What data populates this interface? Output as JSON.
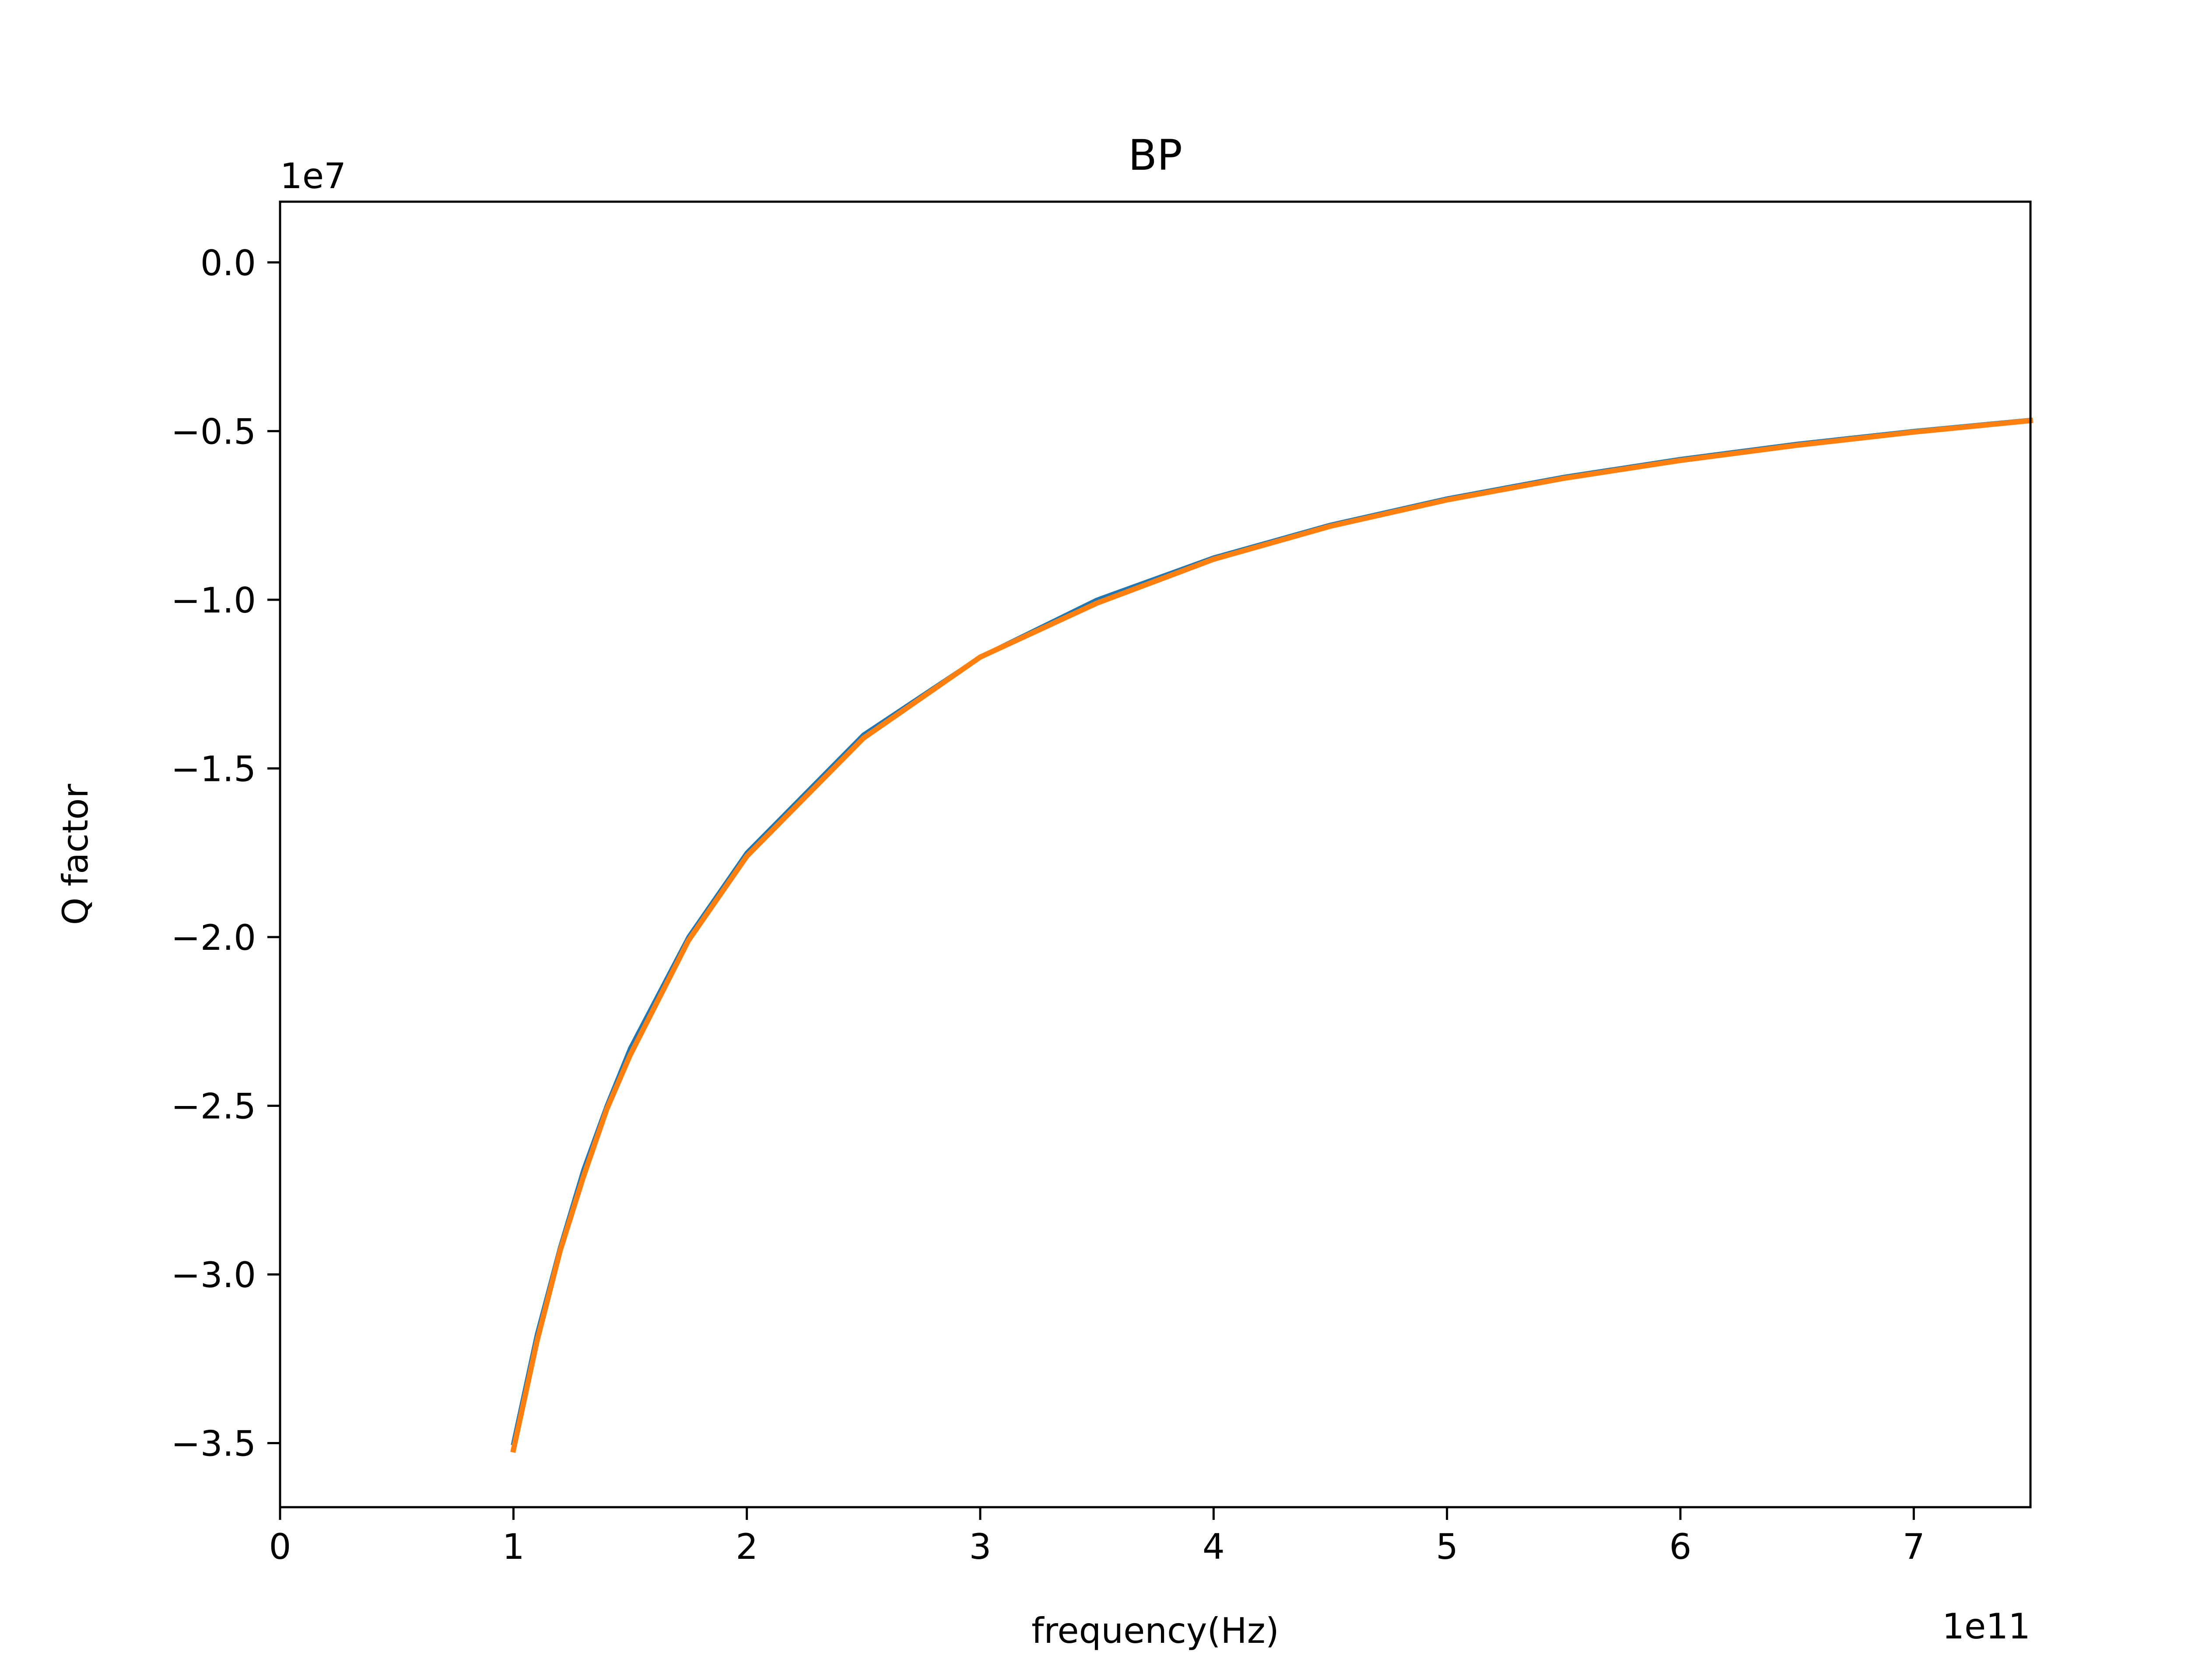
{
  "chart_data": {
    "type": "line",
    "title": "BP",
    "xlabel": "frequency(Hz)",
    "ylabel": "Q factor",
    "x_offset_label": "1e11",
    "y_offset_label": "1e7",
    "x_scale_factor": 100000000000,
    "y_scale_factor": 10000000,
    "xlim": [
      0,
      7.5
    ],
    "ylim": [
      -3.69,
      0.18
    ],
    "x_ticks": [
      0,
      1,
      2,
      3,
      4,
      5,
      6,
      7
    ],
    "x_tick_labels": [
      "0",
      "1",
      "2",
      "3",
      "4",
      "5",
      "6",
      "7"
    ],
    "y_ticks": [
      0.0,
      -0.5,
      -1.0,
      -1.5,
      -2.0,
      -2.5,
      -3.0,
      -3.5
    ],
    "y_tick_labels": [
      "0.0",
      "−0.5",
      "−1.0",
      "−1.5",
      "−2.0",
      "−2.5",
      "−3.0",
      "−3.5"
    ],
    "grid": false,
    "legend": "none",
    "series": [
      {
        "color": "#1f77b4",
        "x": [
          1.0,
          1.1,
          1.2,
          1.3,
          1.4,
          1.5,
          1.75,
          2.0,
          2.5,
          3.0,
          3.5,
          4.0,
          4.5,
          5.0,
          5.5,
          6.0,
          6.5,
          7.0,
          7.5
        ],
        "y": [
          -3.5,
          -3.18,
          -2.92,
          -2.69,
          -2.5,
          -2.33,
          -2.0,
          -1.75,
          -1.4,
          -1.17,
          -1.0,
          -0.875,
          -0.778,
          -0.7,
          -0.636,
          -0.583,
          -0.538,
          -0.5,
          -0.467
        ]
      },
      {
        "color": "#ff7f0e",
        "x": [
          1.0,
          1.1,
          1.2,
          1.3,
          1.4,
          1.5,
          1.75,
          2.0,
          2.5,
          3.0,
          3.5,
          4.0,
          4.5,
          5.0,
          5.5,
          6.0,
          6.5,
          7.0,
          7.5
        ],
        "y": [
          -3.52,
          -3.2,
          -2.93,
          -2.71,
          -2.51,
          -2.35,
          -2.01,
          -1.76,
          -1.41,
          -1.17,
          -1.01,
          -0.88,
          -0.782,
          -0.704,
          -0.64,
          -0.587,
          -0.542,
          -0.503,
          -0.469
        ]
      }
    ]
  }
}
